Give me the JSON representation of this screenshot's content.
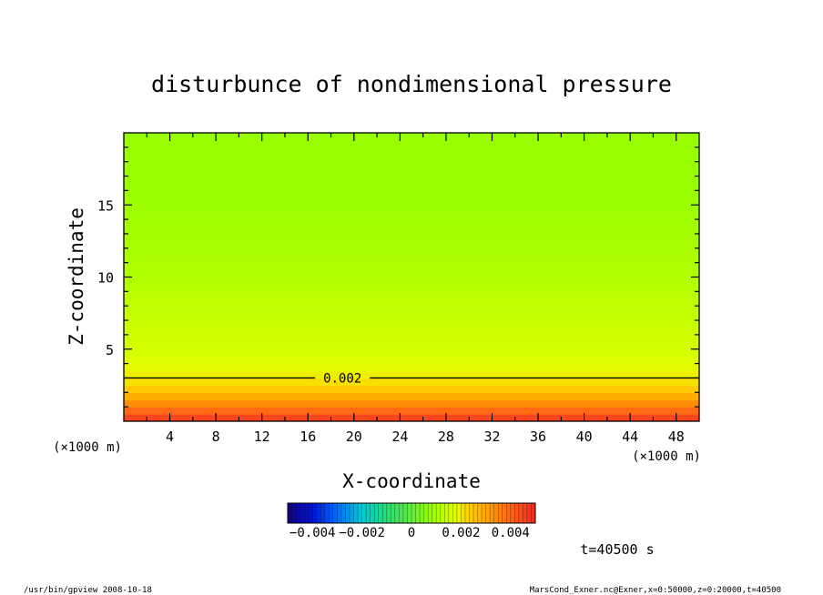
{
  "chart_data": {
    "type": "heatmap",
    "title": "disturbunce of nondimensional pressure",
    "xlabel": "X-coordinate",
    "ylabel": "Z-coordinate",
    "x_unit": "(×1000 m)",
    "y_unit": "(×1000 m)",
    "xlim": [
      0,
      50
    ],
    "ylim": [
      0,
      20
    ],
    "x_ticks": [
      4,
      8,
      12,
      16,
      20,
      24,
      28,
      32,
      36,
      40,
      44,
      48
    ],
    "y_ticks": [
      5,
      10,
      15
    ],
    "z_profile": [
      {
        "z": 0.0,
        "value": 0.0048
      },
      {
        "z": 0.5,
        "value": 0.0042
      },
      {
        "z": 1.0,
        "value": 0.0036
      },
      {
        "z": 1.5,
        "value": 0.0031
      },
      {
        "z": 2.0,
        "value": 0.0026
      },
      {
        "z": 2.5,
        "value": 0.0022
      },
      {
        "z": 3.0,
        "value": 0.002
      },
      {
        "z": 4.0,
        "value": 0.0018
      },
      {
        "z": 5.0,
        "value": 0.0016
      },
      {
        "z": 6.0,
        "value": 0.0015
      },
      {
        "z": 8.0,
        "value": 0.0013
      },
      {
        "z": 10.0,
        "value": 0.0011
      },
      {
        "z": 12.0,
        "value": 0.001
      },
      {
        "z": 14.0,
        "value": 0.0009
      },
      {
        "z": 16.0,
        "value": 0.0008
      },
      {
        "z": 18.0,
        "value": 0.0008
      },
      {
        "z": 20.0,
        "value": 0.0008
      }
    ],
    "contours": [
      {
        "level": 0.002,
        "label": "0.002",
        "z": 3.0
      }
    ],
    "colorbar": {
      "range": [
        -0.005,
        0.005
      ],
      "tick_values": [
        -0.004,
        -0.002,
        0,
        0.002,
        0.004
      ],
      "tick_labels": [
        "−0.004",
        "−0.002",
        "0",
        "0.002",
        "0.004"
      ]
    },
    "time_label": "t=40500 s"
  },
  "footer": {
    "left": "/usr/bin/gpview   2008-10-18",
    "right": "MarsCond_Exner.nc@Exner,x=0:50000,z=0:20000,t=40500"
  }
}
